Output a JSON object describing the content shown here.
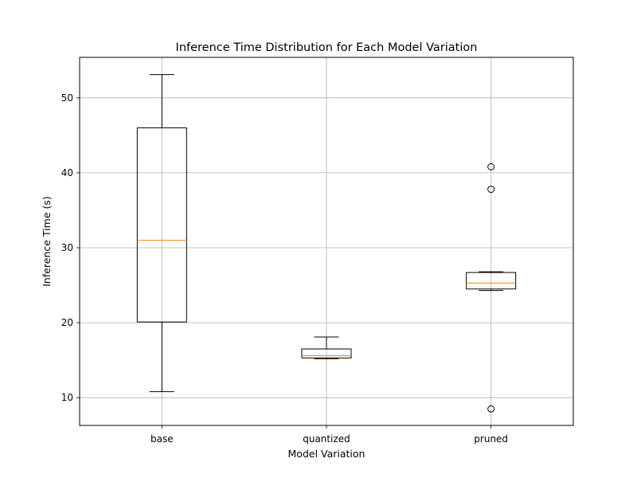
{
  "chart_data": {
    "type": "box",
    "title": "Inference Time Distribution for Each Model Variation",
    "xlabel": "Model Variation",
    "ylabel": "Inference Time (s)",
    "ylim": [
      6.3,
      55.4
    ],
    "yticks": [
      10,
      20,
      30,
      40,
      50
    ],
    "grid": true,
    "categories": [
      "base",
      "quantized",
      "pruned"
    ],
    "boxes": [
      {
        "label": "base",
        "whisker_low": 10.8,
        "q1": 20.1,
        "median": 31.0,
        "q3": 46.0,
        "whisker_high": 53.1,
        "outliers": []
      },
      {
        "label": "quantized",
        "whisker_low": 15.2,
        "q1": 15.3,
        "median": 15.6,
        "q3": 16.5,
        "whisker_high": 18.1,
        "outliers": []
      },
      {
        "label": "pruned",
        "whisker_low": 24.3,
        "q1": 24.5,
        "median": 25.3,
        "q3": 26.7,
        "whisker_high": 26.8,
        "outliers": [
          40.8,
          37.8,
          8.5
        ]
      }
    ],
    "colors": {
      "box": "#000000",
      "median": "#ff7f0e",
      "grid": "#b0b0b0"
    }
  }
}
